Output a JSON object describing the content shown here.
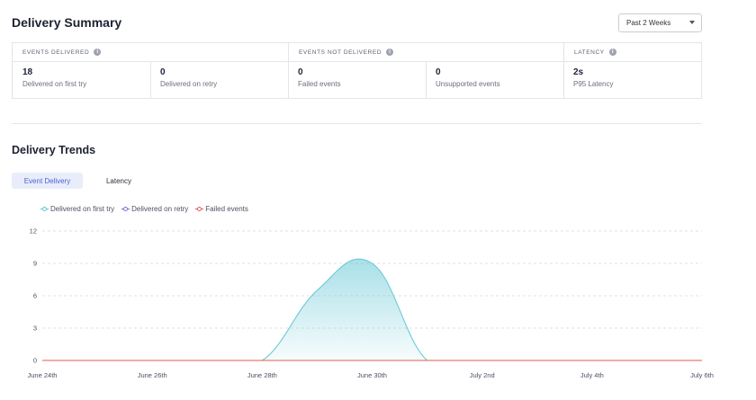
{
  "summary": {
    "title": "Delivery Summary",
    "range_select": {
      "value": "Past 2 Weeks"
    },
    "groups": [
      {
        "header": "EVENTS DELIVERED",
        "metrics": [
          {
            "value": "18",
            "label": "Delivered on first try"
          },
          {
            "value": "0",
            "label": "Delivered on retry"
          }
        ]
      },
      {
        "header": "EVENTS NOT DELIVERED",
        "metrics": [
          {
            "value": "0",
            "label": "Failed events"
          },
          {
            "value": "0",
            "label": "Unsupported events"
          }
        ]
      },
      {
        "header": "LATENCY",
        "metrics": [
          {
            "value": "2s",
            "label": "P95 Latency"
          }
        ]
      }
    ]
  },
  "trends": {
    "title": "Delivery Trends",
    "tabs": [
      "Event Delivery",
      "Latency"
    ]
  },
  "colors": {
    "first_try": "#62c6d4",
    "retry": "#7c6fd0",
    "failed": "#e05c4f"
  },
  "chart_data": {
    "type": "area",
    "legend": [
      "Delivered on first try",
      "Delivered on retry",
      "Failed events"
    ],
    "yticks": [
      "0",
      "3",
      "6",
      "9",
      "12"
    ],
    "ylim": [
      0,
      12
    ],
    "xticks": [
      "June 24th",
      "June 26th",
      "June 28th",
      "June 30th",
      "July 2nd",
      "July 4th",
      "July 6th"
    ],
    "x": [
      "June 24th",
      "June 25th",
      "June 26th",
      "June 27th",
      "June 28th",
      "June 29th",
      "June 30th",
      "July 1st",
      "July 2nd",
      "July 3rd",
      "July 4th",
      "July 5th",
      "July 6th"
    ],
    "series": [
      {
        "name": "Delivered on first try",
        "values": [
          0,
          0,
          0,
          0,
          0,
          6.5,
          9,
          0,
          0,
          0,
          0,
          0,
          0
        ]
      },
      {
        "name": "Delivered on retry",
        "values": [
          0,
          0,
          0,
          0,
          0,
          0,
          0,
          0,
          0,
          0,
          0,
          0,
          0
        ]
      },
      {
        "name": "Failed events",
        "values": [
          0,
          0,
          0,
          0,
          0,
          0,
          0,
          0,
          0,
          0,
          0,
          0,
          0
        ]
      }
    ]
  }
}
